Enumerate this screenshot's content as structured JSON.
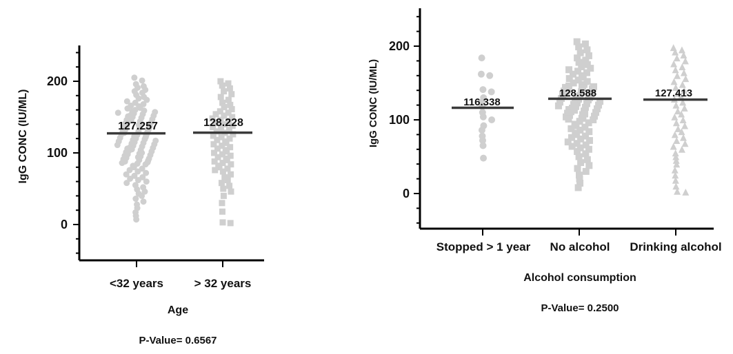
{
  "colors": {
    "points": "#cfcfcf",
    "mean_line": "#3a3a3a",
    "axis": "#000000"
  },
  "chart_data": [
    {
      "type": "scatter",
      "ylabel": "IgG CONC (IU/ML)",
      "xlabel": "Age",
      "p_value_text": "P-Value= 0.6567",
      "categories": [
        "<32 years",
        "> 32 years"
      ],
      "y_ticks": [
        0,
        100,
        200
      ],
      "ylim": [
        -45,
        255
      ],
      "marker_shapes": [
        "circle",
        "square"
      ],
      "means": [
        127.257,
        128.228
      ],
      "mean_labels": [
        "127.257",
        "128.228"
      ],
      "values": [
        [
          205,
          201,
          196,
          193,
          191,
          188,
          186,
          184,
          181,
          178,
          176,
          174,
          172,
          170,
          168,
          166,
          165,
          163,
          162,
          160,
          159,
          158,
          157,
          156,
          155,
          154,
          153,
          152,
          151,
          150,
          149,
          148,
          147,
          146,
          145,
          144,
          143,
          142,
          141,
          140,
          139,
          138,
          137,
          136,
          135,
          134,
          133,
          132,
          131,
          130,
          129,
          128,
          127,
          126,
          125,
          124,
          123,
          122,
          121,
          120,
          119,
          118,
          117,
          116,
          115,
          114,
          113,
          112,
          111,
          110,
          109,
          108,
          107,
          106,
          105,
          104,
          103,
          102,
          101,
          100,
          99,
          98,
          97,
          96,
          95,
          94,
          93,
          92,
          91,
          90,
          89,
          88,
          87,
          86,
          85,
          84,
          82,
          80,
          78,
          76,
          74,
          72,
          70,
          68,
          66,
          64,
          62,
          60,
          58,
          55,
          52,
          49,
          46,
          43,
          40,
          36,
          32,
          28,
          23,
          17,
          12,
          7
        ],
        [
          200,
          197,
          194,
          190,
          186,
          182,
          178,
          174,
          170,
          167,
          164,
          161,
          158,
          156,
          154,
          152,
          150,
          148,
          146,
          144,
          142,
          140,
          138,
          136,
          134,
          132,
          130,
          128,
          126,
          124,
          122,
          120,
          118,
          116,
          114,
          112,
          110,
          108,
          106,
          104,
          102,
          100,
          98,
          96,
          94,
          92,
          90,
          88,
          86,
          84,
          82,
          80,
          78,
          76,
          74,
          70,
          66,
          62,
          58,
          54,
          50,
          46,
          40,
          30,
          18,
          3,
          2
        ]
      ]
    },
    {
      "type": "scatter",
      "ylabel": "IgG CONC (IU/ML)",
      "xlabel": "Alcohol consumption",
      "p_value_text": "P-Value=  0.2500",
      "categories": [
        "Stopped > 1 year",
        "No alcohol",
        "Drinking alcohol"
      ],
      "y_ticks": [
        0,
        100,
        200
      ],
      "ylim": [
        -45,
        255
      ],
      "marker_shapes": [
        "circle",
        "square",
        "triangle"
      ],
      "means": [
        116.338,
        128.588,
        127.413
      ],
      "mean_labels": [
        "116.338",
        "128.588",
        "127.413"
      ],
      "values": [
        [
          184,
          162,
          160,
          141,
          138,
          130,
          124,
          118,
          110,
          104,
          100,
          92,
          86,
          78,
          72,
          65,
          48
        ],
        [
          206,
          203,
          199,
          195,
          191,
          187,
          184,
          181,
          178,
          175,
          172,
          170,
          168,
          166,
          164,
          162,
          160,
          158,
          156,
          154,
          152,
          150,
          148,
          147,
          146,
          145,
          144,
          143,
          142,
          141,
          140,
          139,
          138,
          137,
          136,
          135,
          134,
          133,
          132,
          131,
          130,
          129,
          128,
          127,
          126,
          125,
          124,
          123,
          122,
          121,
          120,
          119,
          118,
          117,
          116,
          115,
          114,
          113,
          112,
          111,
          110,
          109,
          108,
          107,
          106,
          105,
          104,
          103,
          102,
          101,
          100,
          98,
          96,
          94,
          92,
          90,
          88,
          86,
          84,
          82,
          80,
          78,
          76,
          74,
          72,
          70,
          68,
          66,
          64,
          62,
          60,
          57,
          54,
          50,
          46,
          42,
          38,
          34,
          30,
          25,
          20,
          14,
          8
        ],
        [
          198,
          195,
          192,
          188,
          184,
          180,
          176,
          172,
          168,
          164,
          160,
          156,
          152,
          148,
          144,
          140,
          136,
          132,
          128,
          124,
          120,
          116,
          112,
          108,
          104,
          100,
          96,
          92,
          88,
          84,
          80,
          76,
          72,
          68,
          64,
          60,
          55,
          50,
          45,
          40,
          32,
          25,
          18,
          10,
          3,
          2
        ]
      ]
    }
  ]
}
